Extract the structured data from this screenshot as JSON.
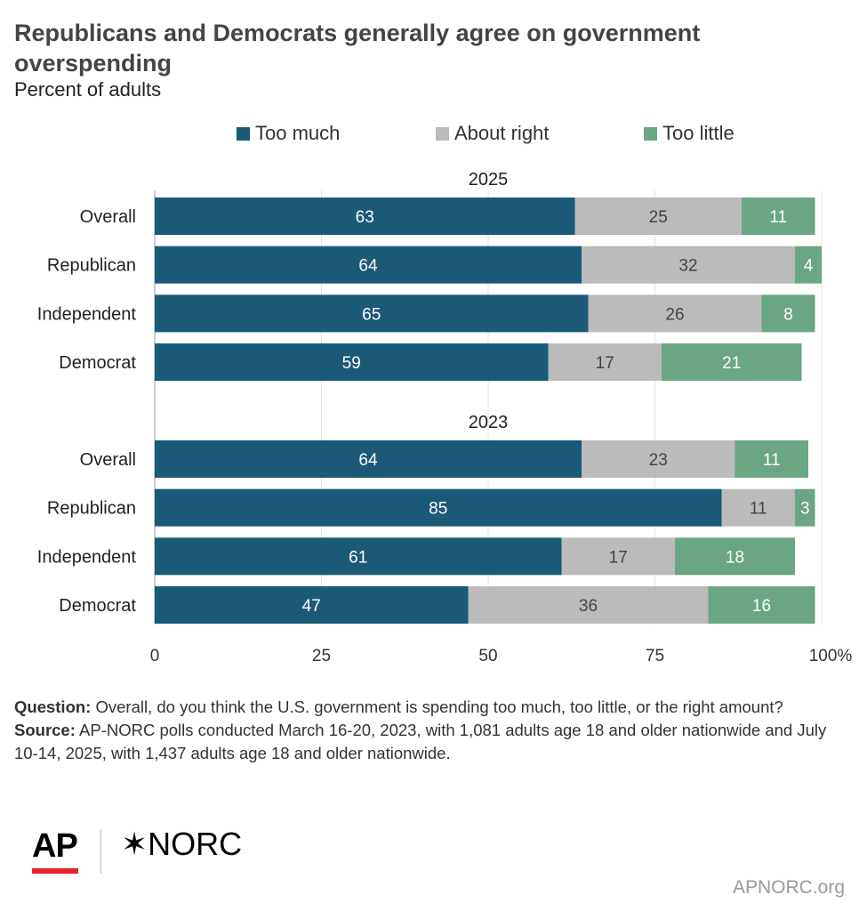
{
  "title": "Republicans and Democrats generally agree on government overspending",
  "subtitle": "Percent of adults",
  "legend": [
    {
      "label": "Too much",
      "color": "#1a5a78"
    },
    {
      "label": "About right",
      "color": "#bbbbbb"
    },
    {
      "label": "Too little",
      "color": "#6aa584"
    }
  ],
  "chart_data": {
    "type": "bar",
    "orientation": "horizontal",
    "stacked": true,
    "xlim": [
      0,
      100
    ],
    "x_ticks": [
      "0",
      "25",
      "50",
      "75",
      "100%"
    ],
    "grid": true,
    "legend_position": "top",
    "series_names": [
      "Too much",
      "About right",
      "Too little"
    ],
    "colors": [
      "#1a5a78",
      "#bbbbbb",
      "#6aa584"
    ],
    "groups": [
      {
        "label": "2025",
        "rows": [
          {
            "label": "Overall",
            "values": [
              63,
              25,
              11
            ]
          },
          {
            "label": "Republican",
            "values": [
              64,
              32,
              4
            ]
          },
          {
            "label": "Independent",
            "values": [
              65,
              26,
              8
            ]
          },
          {
            "label": "Democrat",
            "values": [
              59,
              17,
              21
            ]
          }
        ]
      },
      {
        "label": "2023",
        "rows": [
          {
            "label": "Overall",
            "values": [
              64,
              23,
              11
            ]
          },
          {
            "label": "Republican",
            "values": [
              85,
              11,
              3
            ]
          },
          {
            "label": "Independent",
            "values": [
              61,
              17,
              18
            ]
          },
          {
            "label": "Democrat",
            "values": [
              47,
              36,
              16
            ]
          }
        ]
      }
    ]
  },
  "notes": {
    "question_label": "Question:",
    "question_text": "Overall, do you think the U.S. government is spending too much, too little, or the right amount?",
    "source_label": "Source:",
    "source_text": "AP-NORC polls conducted March 16-20, 2023, with 1,081 adults age 18 and older nationwide and July 10-14, 2025, with 1,437 adults age 18 and older nationwide."
  },
  "logos": {
    "ap": "AP",
    "norc": "NORC",
    "norc_mark": "✶"
  },
  "site": "APNORC.org"
}
